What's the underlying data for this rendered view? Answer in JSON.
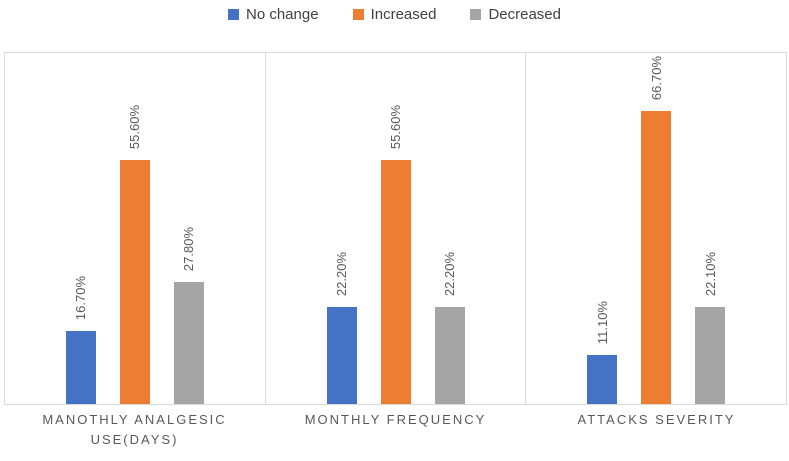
{
  "chart_data": {
    "type": "bar",
    "title": "",
    "xlabel": "",
    "ylabel": "",
    "categories": [
      "MANOTHLY ANALGESIC USE(DAYS)",
      "MONTHLY FREQUENCY",
      "ATTACKS SEVERITY"
    ],
    "category_lines": [
      [
        "MANOTHLY ANALGESIC",
        "USE(DAYS)"
      ],
      [
        "MONTHLY FREQUENCY"
      ],
      [
        "ATTACKS SEVERITY"
      ]
    ],
    "series": [
      {
        "name": "No change",
        "color": "#4472C4",
        "values": [
          16.7,
          22.2,
          11.1
        ],
        "labels": [
          "16.70%",
          "22.20%",
          "11.10%"
        ]
      },
      {
        "name": "Increased",
        "color": "#ED7D31",
        "values": [
          55.6,
          55.6,
          66.7
        ],
        "labels": [
          "55.60%",
          "55.60%",
          "66.70%"
        ]
      },
      {
        "name": "Decreased",
        "color": "#A5A5A5",
        "values": [
          27.8,
          22.2,
          22.1
        ],
        "labels": [
          "27.80%",
          "22.20%",
          "22.10%"
        ]
      }
    ],
    "ylim": [
      0,
      80
    ],
    "grid": false,
    "legend_position": "top",
    "value_label_rotation": -90,
    "value_label_color": "#595959",
    "category_label_color": "#595959",
    "legend_text_color": "#404040",
    "axis_border_color": "#D9D9D9"
  }
}
